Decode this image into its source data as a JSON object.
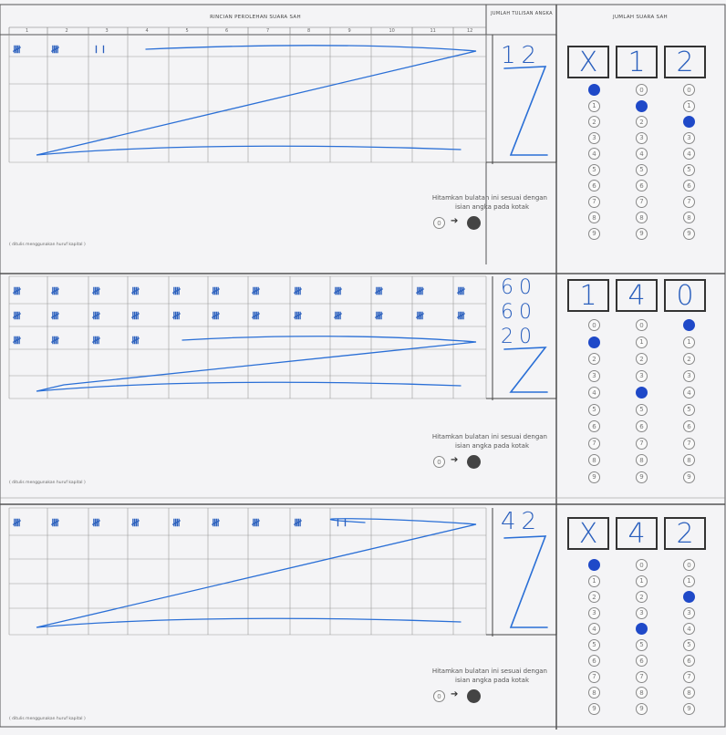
{
  "header": {
    "title": "RINCIAN PEROLEHAN SUARA SAH",
    "count_title": "JUMLAH TULISAN ANGKA",
    "total_title": "JUMLAH SUARA SAH"
  },
  "column_numbers": [
    "1",
    "2",
    "3",
    "4",
    "5",
    "6",
    "7",
    "8",
    "9",
    "10",
    "11",
    "12"
  ],
  "note_text": "( ditulis menggunakan huruf kapital )",
  "instruction": {
    "line1": "Hitamkan bulatan ini sesuai dengan",
    "line2": "isian angka pada kotak"
  },
  "sections": [
    {
      "tally_rows": [
        [
          "𝍸",
          "𝍸",
          "𝍷𝍷"
        ]
      ],
      "row_counts": [
        "12"
      ],
      "boxes": [
        "X",
        "1",
        "2"
      ],
      "filled": [
        "0",
        "1",
        "2"
      ]
    },
    {
      "tally_rows": [
        [
          "𝍸",
          "𝍸",
          "𝍸",
          "𝍸",
          "𝍸",
          "𝍸",
          "𝍸",
          "𝍸",
          "𝍸",
          "𝍸",
          "𝍸",
          "𝍸"
        ],
        [
          "𝍸",
          "𝍸",
          "𝍸",
          "𝍸",
          "𝍸",
          "𝍸",
          "𝍸",
          "𝍸",
          "𝍸",
          "𝍸",
          "𝍸",
          "𝍸"
        ],
        [
          "𝍸",
          "𝍸",
          "𝍸",
          "𝍸"
        ]
      ],
      "row_counts": [
        "60",
        "60",
        "20"
      ],
      "boxes": [
        "1",
        "4",
        "0"
      ],
      "filled": [
        "1",
        "4",
        "0"
      ]
    },
    {
      "tally_rows": [
        [
          "𝍸",
          "𝍸",
          "𝍸",
          "𝍸",
          "𝍸",
          "𝍸",
          "𝍸",
          "𝍸",
          "𝍷𝍷"
        ]
      ],
      "row_counts": [
        "42"
      ],
      "boxes": [
        "X",
        "4",
        "2"
      ],
      "filled": [
        "0",
        "4",
        "2"
      ]
    }
  ],
  "bubble_digits": [
    "0",
    "1",
    "2",
    "3",
    "4",
    "5",
    "6",
    "7",
    "8",
    "9"
  ]
}
